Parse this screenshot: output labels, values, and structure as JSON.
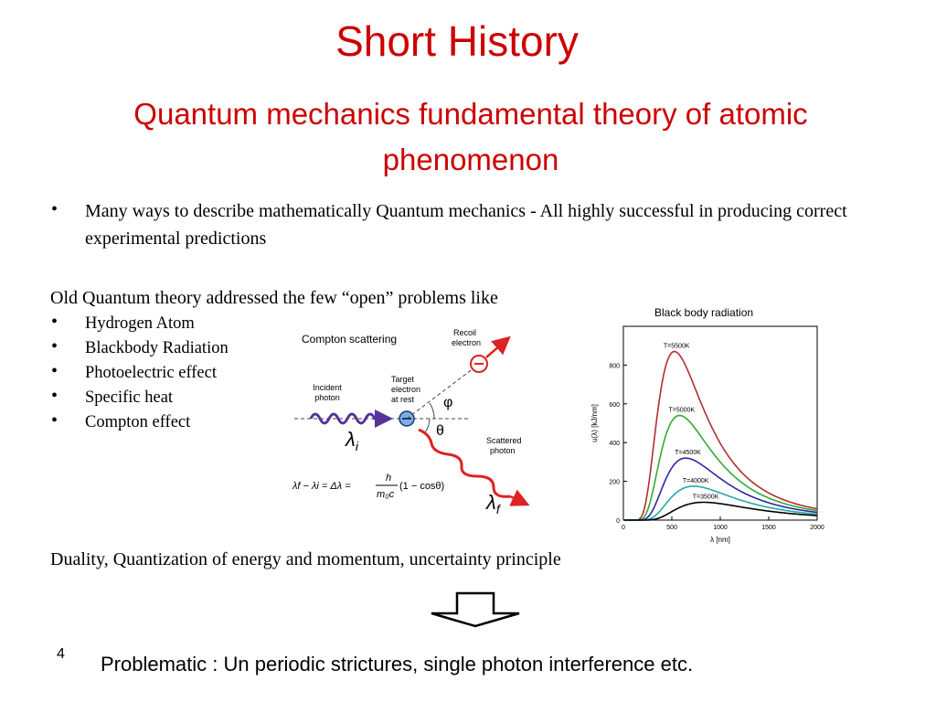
{
  "title": "Short History",
  "subtitle": "Quantum mechanics fundamental theory of atomic phenomenon",
  "intro_bullet": "Many ways to describe mathematically Quantum mechanics - All highly successful in producing correct experimental predictions",
  "old_theory_heading": "Old Quantum theory addressed the few “open” problems like",
  "problems": [
    "Hydrogen Atom",
    "Blackbody Radiation",
    "Photoelectric effect",
    "Specific heat",
    "Compton effect"
  ],
  "compton": {
    "title": "Compton scattering",
    "incident_line1": "Incident",
    "incident_line2": "photon",
    "target_line1": "Target",
    "target_line2": "electron",
    "target_line3": "at rest",
    "recoil_line1": "Recoil",
    "recoil_line2": "electron",
    "scattered_line1": "Scattered",
    "scattered_line2": "photon",
    "phi": "φ",
    "theta": "θ",
    "lambda_i": "λ",
    "lambda_i_sub": "i",
    "lambda_f": "λ",
    "lambda_f_sub": "f",
    "formula_left": "λf − λi = Δλ =",
    "formula_num": "h",
    "formula_den": "m₀c",
    "formula_right": "(1 − cosθ)"
  },
  "blackbody_caption": "Black body radiation",
  "chart_data": {
    "type": "line",
    "title": "",
    "xlabel": "λ [nm]",
    "ylabel": "u(λ) [kJ/nm]",
    "xlim": [
      0,
      2000
    ],
    "ylim": [
      0,
      1000
    ],
    "xticks": [
      "0",
      "500",
      "1000",
      "1500",
      "2000"
    ],
    "yticks": [
      "0",
      "200",
      "400",
      "600",
      "800"
    ],
    "series": [
      {
        "name": "T=5500K",
        "color": "#b03030",
        "peak_x": 527,
        "peak_y": 870
      },
      {
        "name": "T=5000K",
        "color": "#33aa33",
        "peak_x": 580,
        "peak_y": 540
      },
      {
        "name": "T=4500K",
        "color": "#2a2aa0",
        "peak_x": 644,
        "peak_y": 320
      },
      {
        "name": "T=4000K",
        "color": "#22aaaa",
        "peak_x": 725,
        "peak_y": 175
      },
      {
        "name": "T=3500K",
        "color": "#000000",
        "peak_x": 828,
        "peak_y": 92
      }
    ]
  },
  "duality_line": "Duality, Quantization of energy and momentum, uncertainty principle",
  "slide_number": "4",
  "footer": "Problematic : Un periodic strictures, single photon interference etc."
}
